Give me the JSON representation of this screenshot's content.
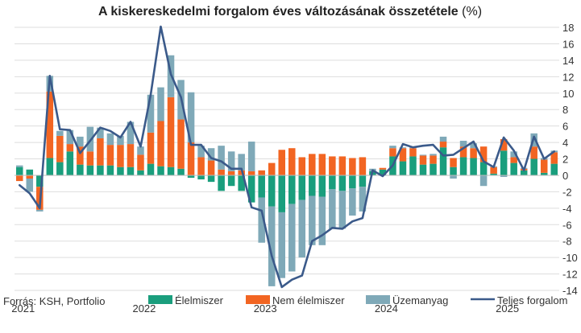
{
  "title": {
    "main": "A kiskereskedelmi forgalom éves változásának összetétele",
    "unit": " (%)"
  },
  "source": "Forrás: KSH, Portfolio",
  "colors": {
    "food": "#1a9e7d",
    "nonfood": "#f26522",
    "fuel": "#7fa9b8",
    "total": "#3b5a8a",
    "grid": "#dddddd",
    "text": "#333333"
  },
  "chart_data": {
    "type": "bar",
    "stacked": true,
    "ylim": [
      -14,
      18
    ],
    "yticks": [
      18,
      16,
      14,
      12,
      10,
      8,
      6,
      4,
      2,
      0,
      -2,
      -4,
      -6,
      -8,
      -10,
      -12,
      -14
    ],
    "x_year_labels": [
      "2021",
      "2022",
      "2023",
      "2024",
      "2025"
    ],
    "grid": true,
    "legend_position": "bottom",
    "series": [
      {
        "name": "Élelmiszer",
        "kind": "bar",
        "values": [
          1.0,
          0.7,
          -1.4,
          2.1,
          1.6,
          2.9,
          1.3,
          1.2,
          1.2,
          1.2,
          1.0,
          1.0,
          0.6,
          1.4,
          1.1,
          1.0,
          0.8,
          -0.3,
          -0.5,
          -0.8,
          -1.9,
          -1.3,
          -1.9,
          -3.3,
          -2.7,
          -3.8,
          -4.5,
          -3.5,
          -3.0,
          -2.5,
          -2.6,
          -1.7,
          -1.9,
          -1.6,
          -1.4,
          0.5,
          0.7,
          2.3,
          1.7,
          2.3,
          1.3,
          1.4,
          3.4,
          1.0,
          2.2,
          2.1,
          1.6,
          0.2,
          3.0,
          1.5,
          0.6,
          2.0,
          0.3,
          1.4
        ]
      },
      {
        "name": "Nem élelmiszer",
        "kind": "bar",
        "values": [
          -0.7,
          -0.4,
          -2.8,
          8.1,
          3.2,
          0.9,
          2.2,
          1.7,
          3.3,
          2.5,
          2.7,
          2.8,
          1.9,
          3.8,
          5.5,
          8.5,
          6.0,
          4.0,
          2.2,
          1.8,
          0.7,
          0.5,
          0.6,
          0.5,
          0.6,
          1.5,
          3.1,
          3.3,
          2.2,
          2.6,
          2.6,
          2.3,
          2.3,
          2.1,
          2.2,
          0.0,
          0.2,
          1.0,
          1.6,
          1.0,
          1.1,
          1.0,
          0.7,
          1.1,
          1.3,
          1.2,
          1.9,
          0.8,
          1.4,
          0.7,
          0.2,
          1.5,
          1.6,
          1.4
        ]
      },
      {
        "name": "Üzemanyag",
        "kind": "bar",
        "values": [
          0.2,
          -1.6,
          -0.2,
          1.9,
          0.6,
          1.7,
          1.2,
          3.0,
          1.3,
          1.4,
          1.1,
          2.7,
          1.0,
          4.6,
          4.1,
          5.1,
          4.8,
          6.1,
          1.4,
          1.5,
          2.9,
          2.4,
          2.0,
          3.6,
          -5.5,
          -9.7,
          -8.0,
          -8.2,
          -7.0,
          -6.0,
          -5.9,
          -4.8,
          -4.6,
          -3.3,
          -3.0,
          0.3,
          0.0,
          0.3,
          0.1,
          0.2,
          0.1,
          0.2,
          0.6,
          -0.4,
          0.7,
          0.6,
          -1.3,
          0.1,
          -0.2,
          0.7,
          0.1,
          1.6,
          0.2,
          0.2
        ]
      },
      {
        "name": "Teljes forgalom",
        "kind": "line",
        "values": [
          -1.2,
          -2.2,
          -4.0,
          12.1,
          5.6,
          5.5,
          2.7,
          4.2,
          5.8,
          5.4,
          4.6,
          6.5,
          3.5,
          9.8,
          18.1,
          12.3,
          9.5,
          3.7,
          3.7,
          2.1,
          1.7,
          0.8,
          0.8,
          -3.9,
          -4.3,
          -9.8,
          -13.6,
          -12.7,
          -12.2,
          -8.0,
          -7.3,
          -6.4,
          -6.5,
          -5.6,
          -5.2,
          0.6,
          -0.1,
          1.2,
          3.8,
          3.4,
          3.6,
          3.7,
          2.4,
          2.5,
          3.3,
          4.1,
          1.7,
          1.0,
          4.6,
          3.0,
          0.6,
          4.7,
          2.0,
          2.9
        ]
      }
    ]
  },
  "legend": [
    {
      "label": "Élelmiszer",
      "key": "food",
      "shape": "box"
    },
    {
      "label": "Nem élelmiszer",
      "key": "nonfood",
      "shape": "box"
    },
    {
      "label": "Üzemanyag",
      "key": "fuel",
      "shape": "box"
    },
    {
      "label": "Teljes forgalom",
      "key": "total",
      "shape": "line"
    }
  ]
}
